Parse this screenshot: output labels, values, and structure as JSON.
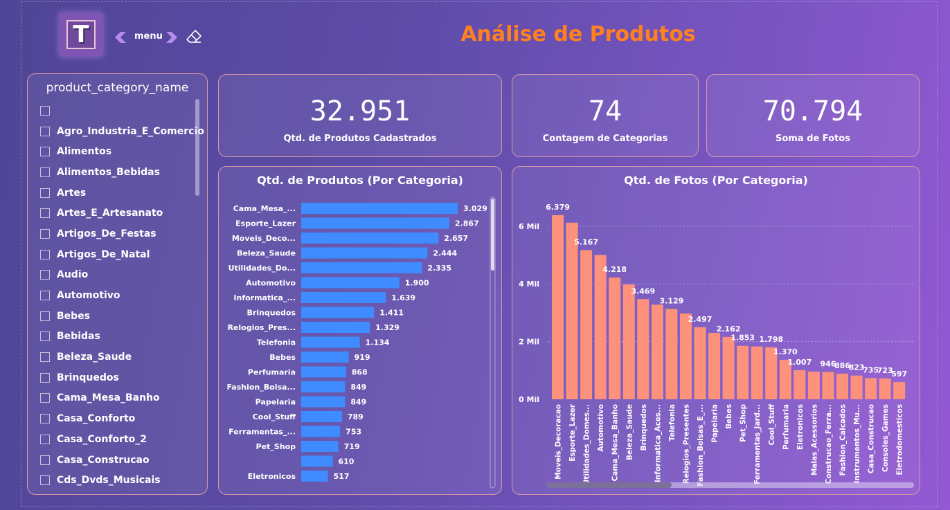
{
  "header": {
    "logo_letter": "T",
    "menu_label": "menu",
    "title": "Análise de Produtos"
  },
  "slicer": {
    "title": "product_category_name",
    "items": [
      "",
      "Agro_Industria_E_Comercio",
      "Alimentos",
      "Alimentos_Bebidas",
      "Artes",
      "Artes_E_Artesanato",
      "Artigos_De_Festas",
      "Artigos_De_Natal",
      "Audio",
      "Automotivo",
      "Bebes",
      "Bebidas",
      "Beleza_Saude",
      "Brinquedos",
      "Cama_Mesa_Banho",
      "Casa_Conforto",
      "Casa_Conforto_2",
      "Casa_Construcao",
      "Cds_Dvds_Musicais"
    ]
  },
  "kpis": [
    {
      "value": "32.951",
      "label": "Qtd. de Produtos Cadastrados"
    },
    {
      "value": "74",
      "label": "Contagem de Categorias"
    },
    {
      "value": "70.794",
      "label": "Soma de Fotos"
    }
  ],
  "colors": {
    "bar_blue": "#3e8cff",
    "bar_salmon": "#fd917c",
    "title_orange": "#ff8020"
  },
  "chart_data": [
    {
      "type": "bar",
      "orientation": "horizontal",
      "title": "Qtd. de Produtos (Por Categoria)",
      "categories": [
        "Cama_Mesa_...",
        "Esporte_Lazer",
        "Moveis_Deco...",
        "Beleza_Saude",
        "Utilidades_Do...",
        "Automotivo",
        "Informatica_...",
        "Brinquedos",
        "Relogios_Pres...",
        "Telefonia",
        "Bebes",
        "Perfumaria",
        "Fashion_Bolsa...",
        "Papelaria",
        "Cool_Stuff",
        "Ferramentas_...",
        "Pet_Shop",
        "",
        "Eletronicos"
      ],
      "values": [
        3029,
        2867,
        2657,
        2444,
        2335,
        1900,
        1639,
        1411,
        1329,
        1134,
        919,
        868,
        849,
        849,
        789,
        753,
        719,
        610,
        517
      ],
      "value_labels": [
        "3.029",
        "2.867",
        "2.657",
        "2.444",
        "2.335",
        "1.900",
        "1.639",
        "1.411",
        "1.329",
        "1.134",
        "919",
        "868",
        "849",
        "849",
        "789",
        "753",
        "719",
        "610",
        "517"
      ],
      "xlim": [
        0,
        3029
      ]
    },
    {
      "type": "bar",
      "orientation": "vertical",
      "title": "Qtd. de Fotos (Por Categoria)",
      "categories": [
        "Moveis_Decoracao",
        "Esporte_Lazer",
        "Utilidades_Domes...",
        "Automotivo",
        "Cama_Mesa_Banho",
        "Beleza_Saude",
        "Brinquedos",
        "Informatica_Aces...",
        "Telefonia",
        "Relogios_Presentes",
        "Fashion_Bolsas_E_...",
        "Papelaria",
        "Bebes",
        "Pet_Shop",
        "Ferramentas_Jard...",
        "Cool_Stuff",
        "Perfumaria",
        "Eletronicos",
        "Malas_Acessorios",
        "Construcao_Ferra...",
        "Fashion_Calcados",
        "Instrumentos_Mu...",
        "Casa_Construcao",
        "Consoles_Games",
        "Eletrodomesticos"
      ],
      "values": [
        6379,
        6120,
        5167,
        5000,
        4218,
        3980,
        3469,
        3280,
        3129,
        2970,
        2497,
        2300,
        2162,
        1853,
        1830,
        1798,
        1370,
        1007,
        960,
        946,
        886,
        823,
        735,
        723,
        597
      ],
      "value_labels": [
        "6.379",
        "",
        "5.167",
        "",
        "4.218",
        "",
        "3.469",
        "",
        "3.129",
        "",
        "2.497",
        "",
        "2.162",
        "1.853",
        "",
        "1.798",
        "1.370",
        "1.007",
        "",
        "946",
        "886",
        "823",
        "735",
        "723",
        "597"
      ],
      "yticks": [
        "0 Mil",
        "2 Mil",
        "4 Mil",
        "6 Mil"
      ],
      "ytick_values": [
        0,
        2000,
        4000,
        6000
      ],
      "ylim": [
        0,
        6379
      ],
      "grid": true
    }
  ]
}
